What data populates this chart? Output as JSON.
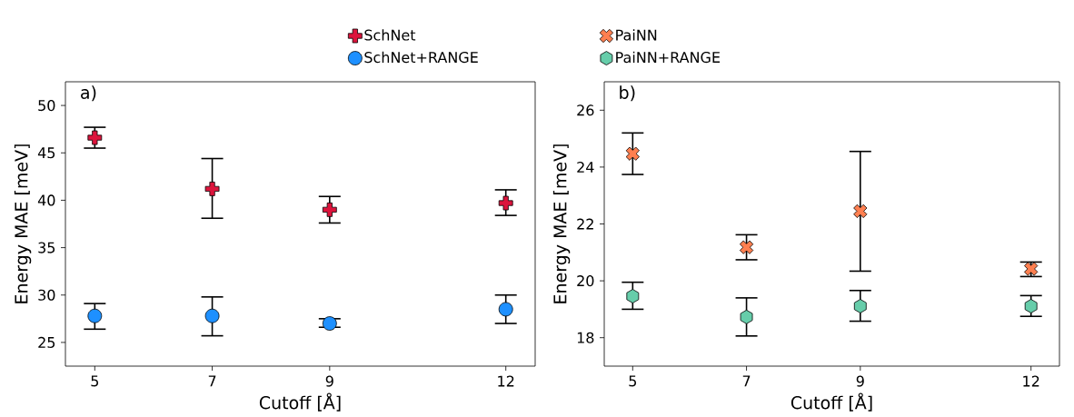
{
  "chart_data": [
    {
      "type": "scatter",
      "title": "a)",
      "xlabel": "Cutoff [Å]",
      "ylabel": "Energy MAE [meV]",
      "x": [
        5,
        7,
        9,
        12
      ],
      "xlim": [
        4.5,
        12.5
      ],
      "ylim": [
        22.5,
        52.5
      ],
      "xticks": [
        5,
        7,
        9,
        12
      ],
      "yticks": [
        25,
        30,
        35,
        40,
        45,
        50
      ],
      "grid": false,
      "legend": "top",
      "series": [
        {
          "name": "SchNet",
          "color": "#dc143c",
          "marker": "plus",
          "values": [
            46.6,
            41.2,
            39.0,
            39.7
          ],
          "errors": [
            [
              45.5,
              47.7
            ],
            [
              38.1,
              44.4
            ],
            [
              37.6,
              40.4
            ],
            [
              38.4,
              41.1
            ]
          ]
        },
        {
          "name": "SchNet+RANGE",
          "color": "#1e90ff",
          "marker": "circle",
          "values": [
            27.8,
            27.8,
            27.0,
            28.5
          ],
          "errors": [
            [
              26.4,
              29.1
            ],
            [
              25.7,
              29.8
            ],
            [
              26.6,
              27.5
            ],
            [
              27.0,
              30.0
            ]
          ]
        }
      ]
    },
    {
      "type": "scatter",
      "title": "b)",
      "xlabel": "Cutoff [Å]",
      "ylabel": "Energy MAE [meV]",
      "x": [
        5,
        7,
        9,
        12
      ],
      "xlim": [
        4.5,
        12.5
      ],
      "ylim": [
        17,
        27
      ],
      "xticks": [
        5,
        7,
        9,
        12
      ],
      "yticks": [
        18,
        20,
        22,
        24,
        26
      ],
      "grid": false,
      "legend": "top",
      "series": [
        {
          "name": "PaiNN",
          "color": "#ff7f50",
          "marker": "cross",
          "values": [
            24.47,
            21.18,
            22.45,
            20.42
          ],
          "errors": [
            [
              23.74,
              25.2
            ],
            [
              20.74,
              21.62
            ],
            [
              20.34,
              24.55
            ],
            [
              20.15,
              20.66
            ]
          ]
        },
        {
          "name": "PaiNN+RANGE",
          "color": "#66cdaa",
          "values": [
            19.46,
            18.73,
            19.11,
            19.11
          ],
          "errors": [
            [
              19.0,
              19.95
            ],
            [
              18.06,
              19.4
            ],
            [
              18.58,
              19.66
            ],
            [
              18.75,
              19.48
            ]
          ]
        }
      ]
    }
  ]
}
